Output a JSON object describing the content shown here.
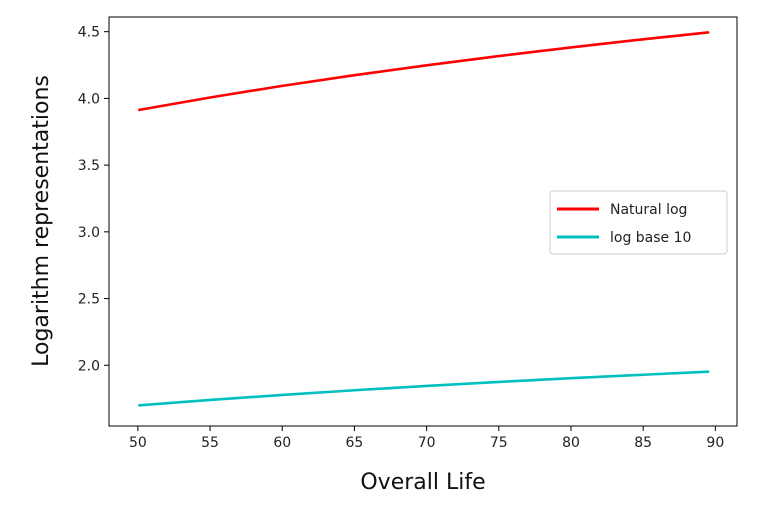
{
  "chart_data": {
    "type": "line",
    "title": "",
    "xlabel": "Overall Life",
    "ylabel": "Logarithm representations",
    "xlim": [
      48.0,
      91.5
    ],
    "ylim": [
      1.545,
      4.61
    ],
    "xticks": [
      50,
      55,
      60,
      65,
      70,
      75,
      80,
      85,
      90
    ],
    "xtick_labels": [
      "50",
      "55",
      "60",
      "65",
      "70",
      "75",
      "80",
      "85",
      "90"
    ],
    "yticks": [
      2.0,
      2.5,
      3.0,
      3.5,
      4.0,
      4.5
    ],
    "ytick_labels": [
      "2.0",
      "2.5",
      "3.0",
      "3.5",
      "4.0",
      "4.5"
    ],
    "grid": false,
    "legend_position": "center-right",
    "series": [
      {
        "name": "Natural log",
        "color": "#ff0000",
        "x": [
          50.1,
          55,
          60,
          65,
          70,
          75,
          80,
          85,
          89.5
        ],
        "y": [
          3.914,
          4.007,
          4.094,
          4.174,
          4.248,
          4.317,
          4.382,
          4.443,
          4.494
        ]
      },
      {
        "name": "log base 10",
        "color": "#00bfbf",
        "x": [
          50.1,
          55,
          60,
          65,
          70,
          75,
          80,
          85,
          89.5
        ],
        "y": [
          1.7,
          1.74,
          1.778,
          1.813,
          1.845,
          1.875,
          1.903,
          1.929,
          1.952
        ]
      }
    ]
  }
}
